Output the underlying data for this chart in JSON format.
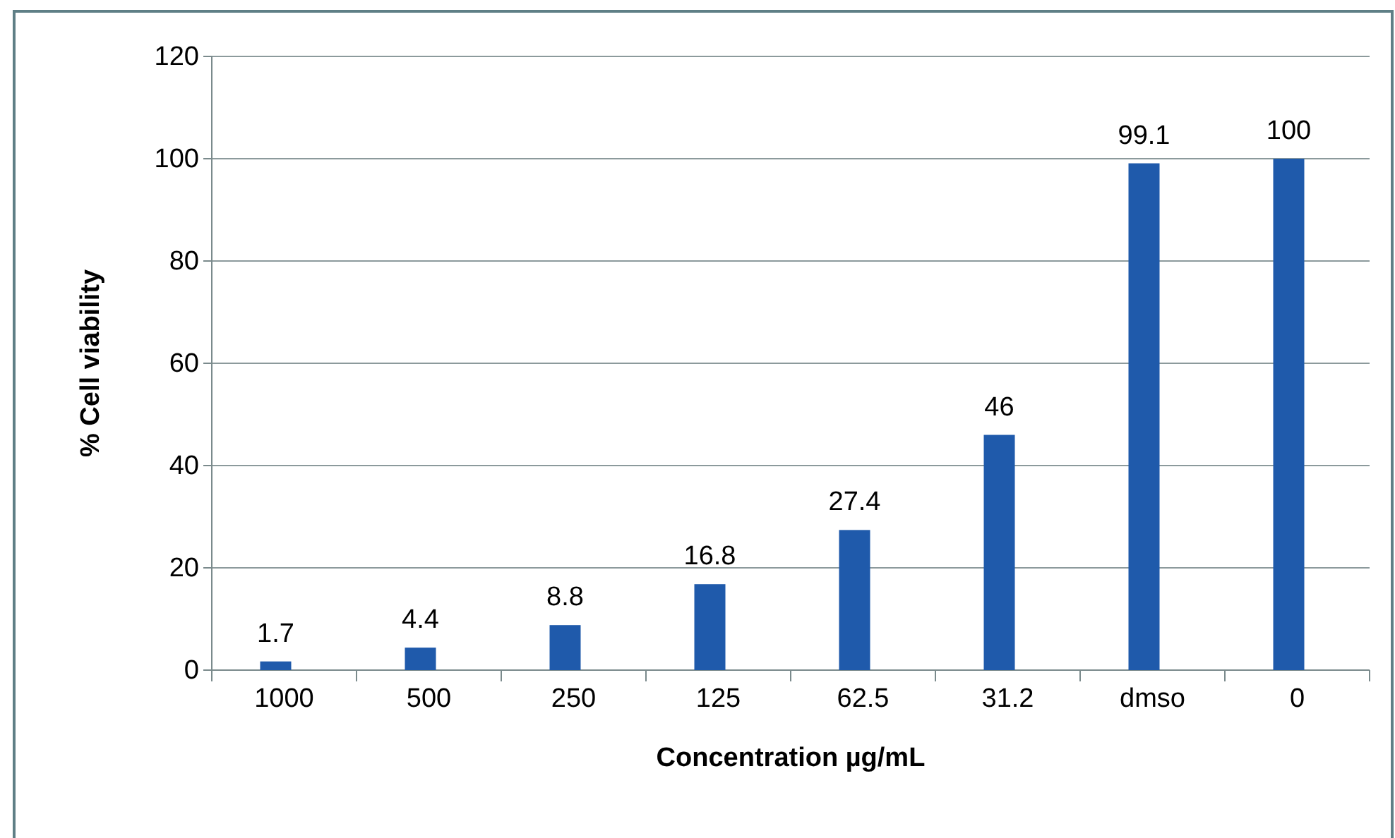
{
  "chart_data": {
    "type": "bar",
    "xlabel": "Concentration µg/mL",
    "ylabel": "% Cell viability",
    "categories": [
      "1000",
      "500",
      "250",
      "125",
      "62.5",
      "31.2",
      "dmso",
      "0"
    ],
    "values": [
      1.7,
      4.4,
      8.8,
      16.8,
      27.4,
      46,
      99.1,
      100
    ],
    "color": "#1f5aab",
    "ylim": [
      0,
      120
    ],
    "yticks": [
      0,
      20,
      40,
      60,
      80,
      100,
      120
    ],
    "grid": "y",
    "data_labels": true
  }
}
